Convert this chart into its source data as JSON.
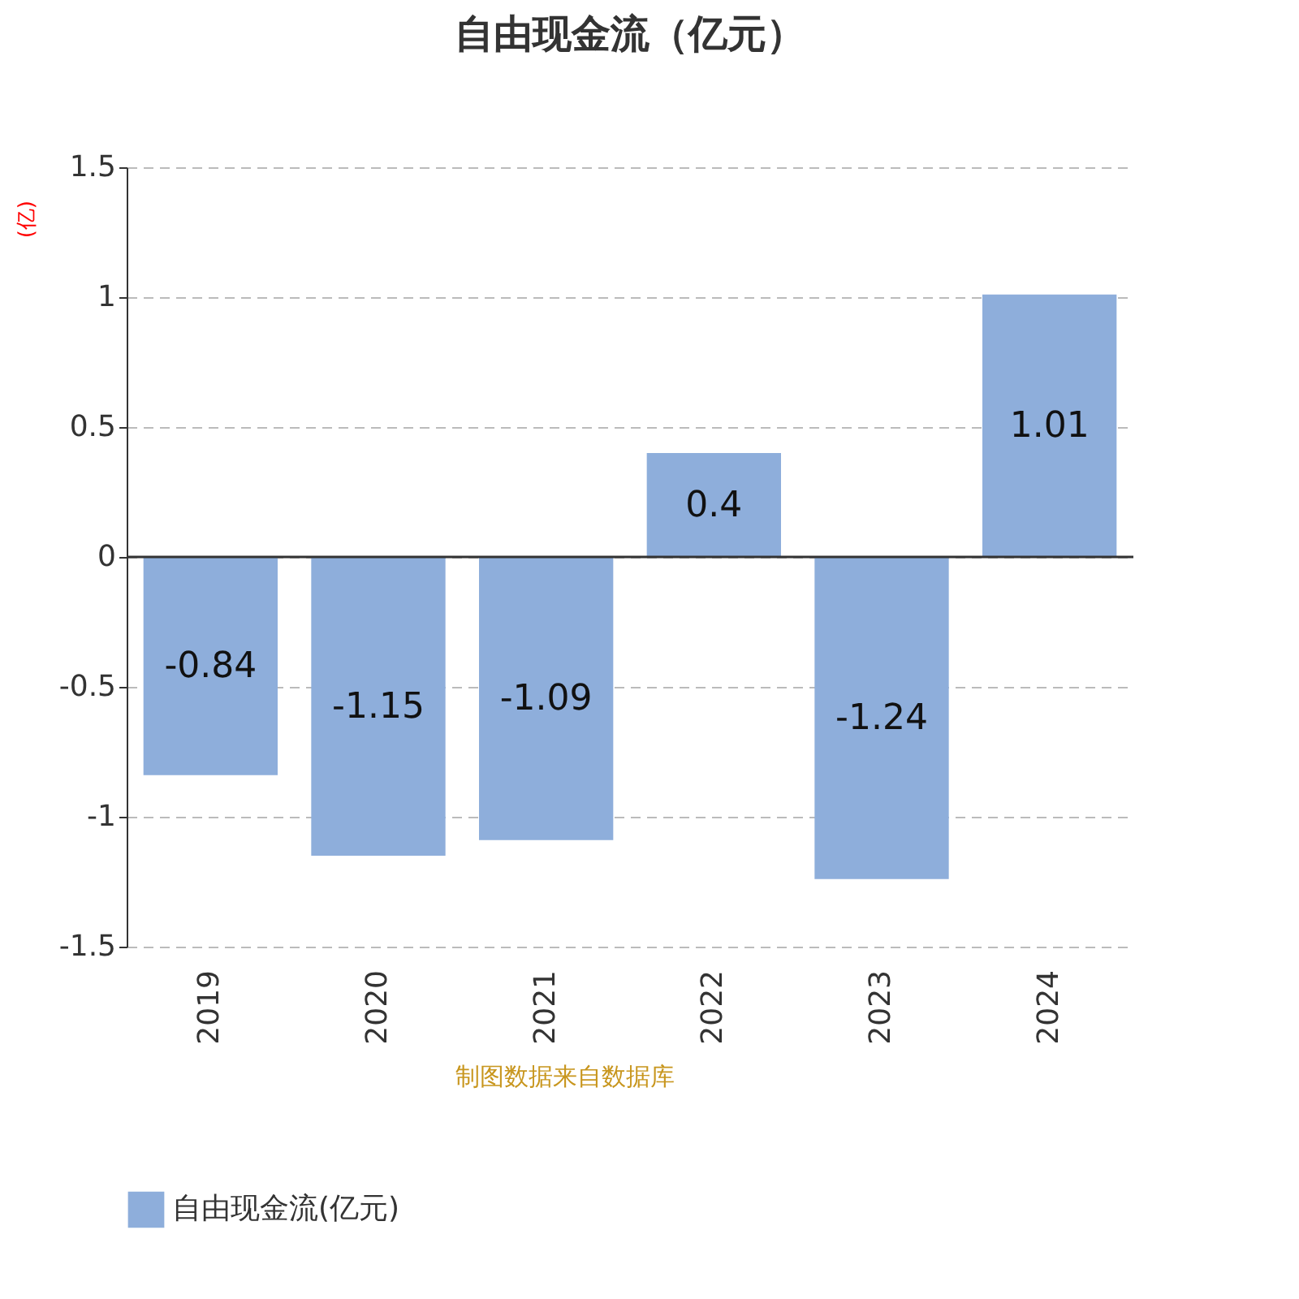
{
  "chart_data": {
    "type": "bar",
    "title": "自由现金流（亿元）",
    "ylabel": "(亿)",
    "categories": [
      "2019",
      "2020",
      "2021",
      "2022",
      "2023",
      "2024"
    ],
    "series": [
      {
        "name": "自由现金流(亿元)",
        "color": "#8eaedb",
        "values": [
          -0.84,
          -1.15,
          -1.09,
          0.4,
          -1.24,
          1.01
        ]
      }
    ],
    "ylim": [
      -1.5,
      1.5
    ],
    "yticks": [
      -1.5,
      -1,
      -0.5,
      0,
      0.5,
      1,
      1.5
    ],
    "grid": "y",
    "legend": "bottom",
    "data_labels": true,
    "annotations": [
      "制图数据来自数据库"
    ]
  }
}
